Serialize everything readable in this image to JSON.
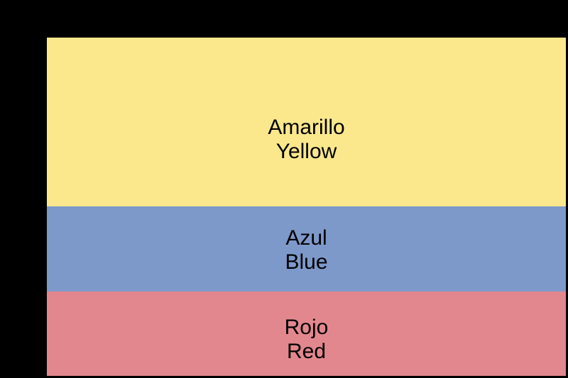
{
  "figure": {
    "background_color": "#000000",
    "text_color": "#000000"
  },
  "flag": {
    "stripes": [
      {
        "id": "yellow",
        "label_es": "Amarillo",
        "label_en": "Yellow",
        "color": "#FBE88C",
        "height_pct": 50
      },
      {
        "id": "blue",
        "label_es": "Azul",
        "label_en": "Blue",
        "color": "#7D99CA",
        "height_pct": 25
      },
      {
        "id": "red",
        "label_es": "Rojo",
        "label_en": "Red",
        "color": "#E2878E",
        "height_pct": 25
      }
    ]
  }
}
